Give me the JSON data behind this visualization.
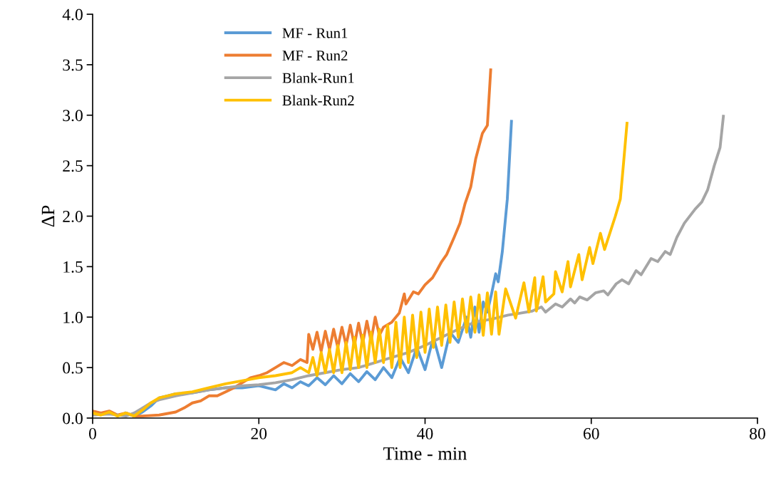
{
  "chart_data": {
    "type": "line",
    "xlabel": "Time - min",
    "ylabel": "ΔP",
    "xlim": [
      0,
      80
    ],
    "xticks": [
      0,
      20,
      40,
      60,
      80
    ],
    "ylim": [
      0,
      4
    ],
    "yticks": [
      {
        "value": 0,
        "label": "0.0"
      },
      {
        "value": 0.5,
        "label": "0.5"
      },
      {
        "value": 1,
        "label": "1.0"
      },
      {
        "value": 1.5,
        "label": "1.5"
      },
      {
        "value": 2,
        "label": "2.0"
      },
      {
        "value": 2.5,
        "label": "2.5"
      },
      {
        "value": 3,
        "label": "3.0"
      },
      {
        "value": 3.5,
        "label": "3.5"
      },
      {
        "value": 4,
        "label": "4.0"
      }
    ],
    "grid": false,
    "legend": "top left",
    "marker": "none",
    "line_style": "solid",
    "series": [
      {
        "name": "MF - Run1",
        "color": "#5b9bd5",
        "x": [
          4,
          5,
          6,
          7,
          8,
          9,
          10,
          12,
          14,
          16,
          18,
          20,
          22,
          23,
          24,
          25,
          26,
          27,
          28,
          29,
          30,
          31,
          32,
          33,
          34,
          35,
          36,
          37,
          38,
          39,
          40,
          41,
          42,
          43,
          44,
          45,
          45.5,
          46,
          46.5,
          47,
          47.5,
          48,
          48.5,
          48.8,
          49.3,
          49.9,
          50.4
        ],
        "values": [
          0.05,
          0.02,
          0.06,
          0.12,
          0.2,
          0.22,
          0.24,
          0.25,
          0.28,
          0.3,
          0.3,
          0.32,
          0.28,
          0.34,
          0.3,
          0.36,
          0.32,
          0.4,
          0.33,
          0.42,
          0.34,
          0.44,
          0.36,
          0.46,
          0.38,
          0.5,
          0.4,
          0.6,
          0.45,
          0.7,
          0.48,
          0.8,
          0.5,
          0.85,
          0.75,
          1.0,
          0.8,
          1.1,
          0.85,
          1.15,
          1.05,
          1.23,
          1.43,
          1.35,
          1.65,
          2.17,
          2.94
        ]
      },
      {
        "name": "MF - Run2",
        "color": "#ed7d31",
        "x": [
          0,
          1,
          2,
          3,
          4,
          5,
          6,
          8,
          10,
          11,
          12,
          13,
          14,
          15,
          16,
          17,
          18,
          19,
          20,
          21,
          22,
          23,
          24,
          25,
          25.8,
          26,
          26.5,
          27,
          27.5,
          28,
          28.5,
          29,
          29.5,
          30,
          30.5,
          31,
          31.5,
          32,
          32.5,
          33,
          33.5,
          34,
          34.5,
          35,
          36,
          36.9,
          37.5,
          37.7,
          38.6,
          39.2,
          40,
          40.9,
          41.4,
          42,
          42.6,
          43.5,
          44.2,
          44.8,
          45.5,
          46.1,
          46.9,
          47.5,
          47.9
        ],
        "values": [
          0.07,
          0.05,
          0.07,
          0.03,
          0.05,
          0.02,
          0.02,
          0.03,
          0.06,
          0.1,
          0.15,
          0.17,
          0.22,
          0.22,
          0.26,
          0.3,
          0.35,
          0.4,
          0.42,
          0.45,
          0.5,
          0.55,
          0.52,
          0.58,
          0.55,
          0.83,
          0.68,
          0.85,
          0.66,
          0.86,
          0.68,
          0.88,
          0.7,
          0.9,
          0.72,
          0.92,
          0.72,
          0.94,
          0.74,
          0.96,
          0.76,
          1.0,
          0.82,
          0.9,
          0.95,
          1.04,
          1.23,
          1.13,
          1.25,
          1.23,
          1.32,
          1.39,
          1.46,
          1.55,
          1.62,
          1.79,
          1.93,
          2.12,
          2.29,
          2.57,
          2.82,
          2.9,
          3.45
        ]
      },
      {
        "name": "Blank-Run1",
        "color": "#a5a5a5",
        "x": [
          0,
          2,
          4,
          5,
          6,
          7,
          8,
          10,
          12,
          14,
          16,
          18,
          20,
          22,
          24,
          26,
          28,
          30,
          32,
          34,
          36,
          38,
          40,
          42,
          44,
          46,
          48,
          50,
          51.5,
          52.9,
          54,
          54.5,
          55.7,
          56.5,
          57.5,
          58,
          58.6,
          59.5,
          60.5,
          61.5,
          62,
          63,
          63.7,
          64.5,
          65.4,
          66,
          67.2,
          68,
          68.9,
          69.5,
          70.3,
          71.2,
          72.5,
          73.3,
          74,
          74.8,
          75.5,
          75.9
        ],
        "values": [
          0.03,
          0.04,
          0.02,
          0.05,
          0.1,
          0.15,
          0.18,
          0.22,
          0.25,
          0.28,
          0.3,
          0.32,
          0.33,
          0.35,
          0.38,
          0.42,
          0.45,
          0.48,
          0.5,
          0.55,
          0.6,
          0.65,
          0.72,
          0.8,
          0.88,
          0.95,
          0.98,
          1.02,
          1.04,
          1.06,
          1.1,
          1.05,
          1.13,
          1.1,
          1.18,
          1.14,
          1.2,
          1.17,
          1.24,
          1.26,
          1.22,
          1.33,
          1.37,
          1.33,
          1.46,
          1.42,
          1.58,
          1.55,
          1.65,
          1.62,
          1.79,
          1.93,
          2.07,
          2.14,
          2.26,
          2.5,
          2.68,
          2.99
        ]
      },
      {
        "name": "Blank-Run2",
        "color": "#ffc000",
        "x": [
          0,
          1,
          2,
          3,
          4,
          5,
          6,
          7,
          8,
          9,
          10,
          12,
          14,
          16,
          18,
          20,
          22,
          24,
          25,
          26,
          26.5,
          27,
          27.5,
          28,
          28.5,
          29,
          29.5,
          30,
          30.5,
          31,
          31.5,
          32,
          32.5,
          33,
          33.5,
          34,
          34.5,
          35,
          35.5,
          36,
          36.5,
          37,
          37.5,
          38,
          38.5,
          39,
          39.5,
          40,
          40.5,
          41,
          41.5,
          42,
          42.5,
          43,
          43.5,
          44,
          44.5,
          45,
          45.5,
          46,
          46.5,
          47,
          47.5,
          48,
          48.5,
          48.9,
          49.7,
          50.9,
          51.9,
          52.5,
          53.2,
          53.4,
          54.2,
          54.5,
          55.5,
          55.7,
          56.5,
          57.2,
          57.5,
          58.5,
          58.9,
          59.8,
          60.2,
          61.1,
          61.6,
          62.9,
          63.5,
          63.9,
          64.3
        ],
        "values": [
          0.05,
          0.03,
          0.06,
          0.02,
          0.05,
          0.02,
          0.08,
          0.15,
          0.2,
          0.22,
          0.24,
          0.26,
          0.3,
          0.34,
          0.37,
          0.4,
          0.42,
          0.45,
          0.5,
          0.45,
          0.6,
          0.42,
          0.65,
          0.45,
          0.68,
          0.45,
          0.72,
          0.45,
          0.75,
          0.48,
          0.8,
          0.5,
          0.82,
          0.5,
          0.85,
          0.55,
          0.88,
          0.55,
          0.92,
          0.5,
          0.95,
          0.5,
          1.0,
          0.55,
          1.02,
          0.6,
          1.05,
          0.65,
          1.08,
          0.7,
          1.1,
          0.72,
          1.12,
          0.75,
          1.15,
          0.8,
          1.18,
          0.85,
          1.2,
          0.85,
          1.22,
          0.82,
          1.24,
          0.83,
          1.25,
          0.83,
          1.28,
          0.99,
          1.34,
          1.05,
          1.39,
          1.06,
          1.4,
          1.15,
          1.23,
          1.45,
          1.25,
          1.55,
          1.3,
          1.62,
          1.37,
          1.69,
          1.53,
          1.83,
          1.67,
          2.0,
          2.17,
          2.54,
          2.92
        ]
      }
    ]
  }
}
